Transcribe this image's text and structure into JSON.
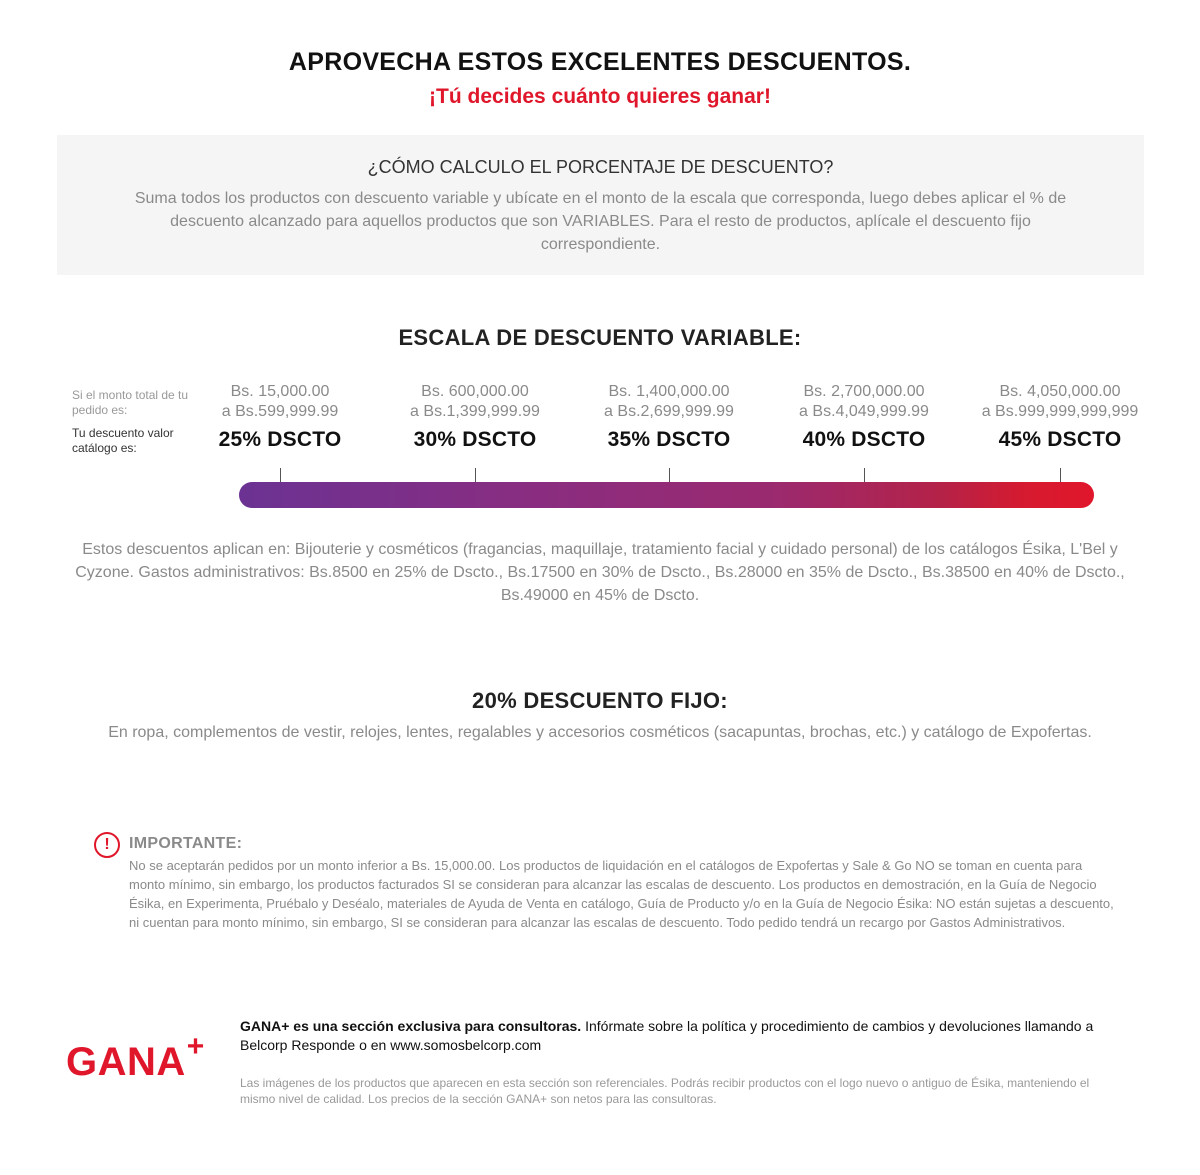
{
  "header": {
    "title": "APROVECHA ESTOS EXCELENTES DESCUENTOS.",
    "subtitle": "¡Tú decides cuánto quieres ganar!"
  },
  "info": {
    "title": "¿CÓMO CALCULO EL PORCENTAJE DE DESCUENTO?",
    "body": "Suma todos los productos con descuento variable y ubícate en el monto de la escala que corresponda, luego debes aplicar el % de descuento alcanzado para aquellos productos que son VARIABLES. Para el resto de productos, aplícale el descuento fijo correspondiente."
  },
  "scale": {
    "title": "ESCALA DE DESCUENTO VARIABLE:",
    "amount_label": "Si el monto total de tu pedido es:",
    "discount_label": "Tu descuento valor catálogo es:",
    "tiers": [
      {
        "from": "Bs. 15,000.00",
        "to": "a Bs.599,999.99",
        "discount": "25% DSCTO"
      },
      {
        "from": "Bs. 600,000.00",
        "to": "a Bs.1,399,999.99",
        "discount": "30% DSCTO"
      },
      {
        "from": "Bs. 1,400,000.00",
        "to": "a Bs.2,699,999.99",
        "discount": "35% DSCTO"
      },
      {
        "from": "Bs. 2,700,000.00",
        "to": "a Bs.4,049,999.99",
        "discount": "40% DSCTO"
      },
      {
        "from": "Bs. 4,050,000.00",
        "to": "a Bs.999,999,999,999",
        "discount": "45% DSCTO"
      }
    ],
    "gradient_start": "#6b3293",
    "gradient_end": "#e0162b",
    "note": "Estos descuentos aplican en: Bijouterie y cosméticos (fragancias, maquillaje, tratamiento facial y cuidado personal) de los catálogos Ésika, L'Bel y Cyzone. Gastos administrativos: Bs.8500 en 25% de Dscto., Bs.17500 en 30% de Dscto., Bs.28000 en 35% de Dscto., Bs.38500 en 40% de Dscto., Bs.49000 en 45% de Dscto."
  },
  "fixed": {
    "title": "20% DESCUENTO FIJO:",
    "body": "En ropa, complementos de vestir, relojes, lentes, regalables y accesorios cosméticos (sacapuntas, brochas, etc.) y catálogo de Expofertas."
  },
  "important": {
    "icon": "exclamation-circle-icon",
    "title": "IMPORTANTE:",
    "body": "No se aceptarán pedidos por un monto inferior a Bs. 15,000.00. Los productos de liquidación en el catálogos de Expofertas y Sale & Go NO se toman en cuenta para monto mínimo, sin embargo, los productos facturados SI se consideran para alcanzar las escalas de descuento. Los productos en demostración, en la Guía de Negocio Ésika, en Experimenta, Pruébalo y Deséalo, materiales de Ayuda de Venta en catálogo, Guía de Producto y/o en la Guía de Negocio Ésika: NO están sujetas a descuento, ni cuentan para monto mínimo, sin embargo, SI se consideran para alcanzar las escalas de descuento. Todo pedido tendrá un recargo por Gastos Administrativos."
  },
  "footer": {
    "logo_text": "GANA",
    "logo_plus": "+",
    "brand_color": "#e0162b",
    "main_bold": "GANA+ es una sección exclusiva para consultoras.",
    "main_rest": " Infórmate sobre la política y procedimiento de cambios y devoluciones llamando a Belcorp Responde o en www.somosbelcorp.com",
    "note": "Las imágenes de los productos que aparecen en esta sección son referenciales. Podrás recibir productos con el logo nuevo o antiguo de Ésika, manteniendo el mismo nivel de calidad. Los precios de la sección GANA+ son netos para las consultoras."
  }
}
